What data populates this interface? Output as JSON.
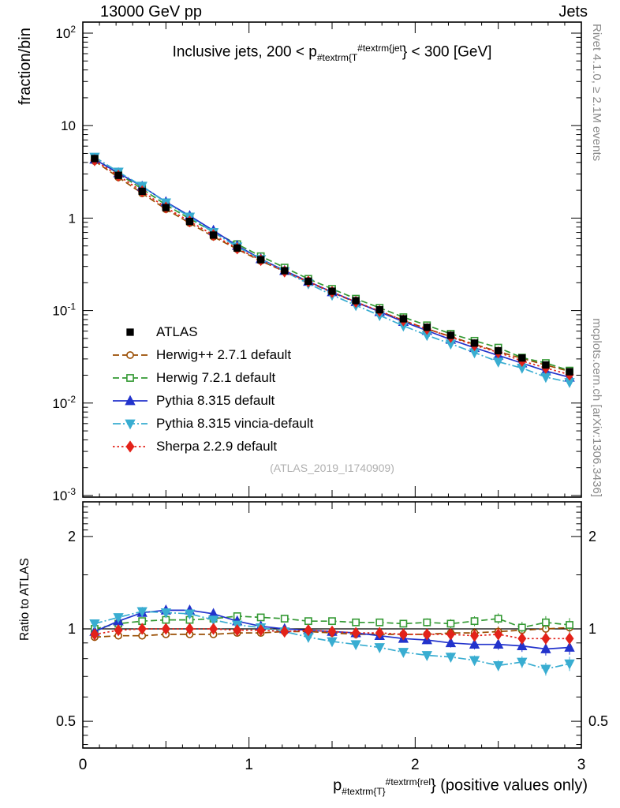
{
  "header": {
    "left": "13000 GeV pp",
    "right": "Jets"
  },
  "side_notes": {
    "rivet": "Rivet 4.1.0, ≥ 2.1M events",
    "mcplots": "mcplots.cern.ch [arXiv:1306.3436]"
  },
  "watermark": "(ATLAS_2019_I1740909)",
  "title_parts": {
    "pre": "Inclusive jets, 200 < p",
    "sub": "#textrm{T",
    "sup": "#textrm{jet",
    "post": "} < 300 [GeV]"
  },
  "xlabel_parts": {
    "base": "p",
    "sub": "#textrm{T}",
    "sup": "#textrm{rel",
    "post": "} (positive values only)"
  },
  "chart_data": {
    "type": "line",
    "title": "Inclusive jets, 200 < pT_jet < 300 [GeV]",
    "ylabel": "fraction/bin",
    "ratio_ylabel": "Ratio to ATLAS",
    "xlabel": "pT_rel (positive values only)",
    "scales": {
      "x": "linear",
      "main_y": "log",
      "ratio_y": "log"
    },
    "xlim": [
      0,
      3
    ],
    "main_ylim": [
      0.001,
      100
    ],
    "ratio_ylim": [
      0.41,
      2.59
    ],
    "x_ticks": [
      0,
      1,
      2,
      3
    ],
    "main_y_decades": [
      2,
      1,
      0,
      -1,
      -2,
      -3
    ],
    "ratio_ticks": [
      2,
      1,
      0.5
    ],
    "ratio_minor_ticks": [
      2.5,
      2.4,
      2.3,
      2.2,
      2.1,
      1.5,
      0.9,
      0.8,
      0.7,
      0.6,
      0.48,
      0.45,
      0.42
    ],
    "ratio_ref": 1,
    "x": [
      0.071,
      0.214,
      0.357,
      0.5,
      0.643,
      0.786,
      0.929,
      1.071,
      1.214,
      1.357,
      1.5,
      1.643,
      1.786,
      1.929,
      2.071,
      2.214,
      2.357,
      2.5,
      2.643,
      2.786,
      2.929
    ],
    "atlas_err": [
      0.01,
      0.008,
      0.008,
      0.008,
      0.009,
      0.009,
      0.01,
      0.01,
      0.011,
      0.012,
      0.013,
      0.014,
      0.015,
      0.016,
      0.018,
      0.02,
      0.022,
      0.024,
      0.027,
      0.03,
      0.033
    ],
    "ratio_err": [
      0.012,
      0.012,
      0.012,
      0.013,
      0.014,
      0.015,
      0.016,
      0.017,
      0.018,
      0.02,
      0.022,
      0.024,
      0.026,
      0.028,
      0.031,
      0.034,
      0.037,
      0.04,
      0.044,
      0.048,
      0.053
    ],
    "series": [
      {
        "id": "atlas",
        "label": "ATLAS",
        "color": "#000000",
        "marker": "square",
        "fill": true,
        "line": "none",
        "values": [
          4.4,
          2.9,
          1.95,
          1.3,
          0.92,
          0.655,
          0.475,
          0.355,
          0.27,
          0.208,
          0.162,
          0.128,
          0.102,
          0.0815,
          0.066,
          0.054,
          0.0445,
          0.0368,
          0.0307,
          0.0258,
          0.0218
        ]
      },
      {
        "id": "herwigpp",
        "label": "Herwig++ 2.7.1 default",
        "color": "#994C00",
        "marker": "circle",
        "fill": false,
        "line": "dashed",
        "ratio": [
          0.94,
          0.95,
          0.95,
          0.96,
          0.96,
          0.96,
          0.97,
          0.97,
          0.98,
          0.98,
          0.97,
          0.96,
          0.96,
          0.96,
          0.96,
          0.97,
          0.97,
          0.98,
          0.99,
          1.0,
          1.01
        ]
      },
      {
        "id": "herwig7",
        "label": "Herwig 7.2.1 default",
        "color": "#339933",
        "marker": "square",
        "fill": false,
        "line": "dashed",
        "ratio": [
          1.0,
          1.04,
          1.06,
          1.07,
          1.07,
          1.08,
          1.1,
          1.09,
          1.08,
          1.06,
          1.06,
          1.05,
          1.05,
          1.04,
          1.05,
          1.04,
          1.06,
          1.08,
          1.01,
          1.05,
          1.03
        ]
      },
      {
        "id": "pythia-default",
        "label": "Pythia 8.315 default",
        "color": "#2233CC",
        "marker": "triangle-up",
        "fill": true,
        "line": "solid",
        "ratio": [
          0.98,
          1.06,
          1.13,
          1.15,
          1.15,
          1.12,
          1.06,
          1.02,
          1.0,
          0.99,
          0.98,
          0.97,
          0.95,
          0.93,
          0.92,
          0.9,
          0.89,
          0.89,
          0.88,
          0.86,
          0.87
        ]
      },
      {
        "id": "pythia-vincia",
        "label": "Pythia 8.315 vincia-default",
        "color": "#39ADD1",
        "marker": "triangle-down",
        "fill": true,
        "line": "dashdot",
        "ratio": [
          1.04,
          1.09,
          1.14,
          1.13,
          1.12,
          1.07,
          1.03,
          1.01,
          0.98,
          0.94,
          0.91,
          0.89,
          0.87,
          0.84,
          0.82,
          0.81,
          0.79,
          0.76,
          0.78,
          0.74,
          0.77
        ]
      },
      {
        "id": "sherpa",
        "label": "Sherpa 2.2.9 default",
        "color": "#E32219",
        "marker": "diamond",
        "fill": true,
        "line": "dotted",
        "ratio": [
          0.96,
          0.99,
          1.0,
          1.0,
          1.0,
          1.0,
          0.99,
          0.99,
          0.98,
          0.99,
          0.98,
          0.97,
          0.97,
          0.96,
          0.96,
          0.96,
          0.95,
          0.96,
          0.93,
          0.93,
          0.93
        ]
      }
    ]
  }
}
